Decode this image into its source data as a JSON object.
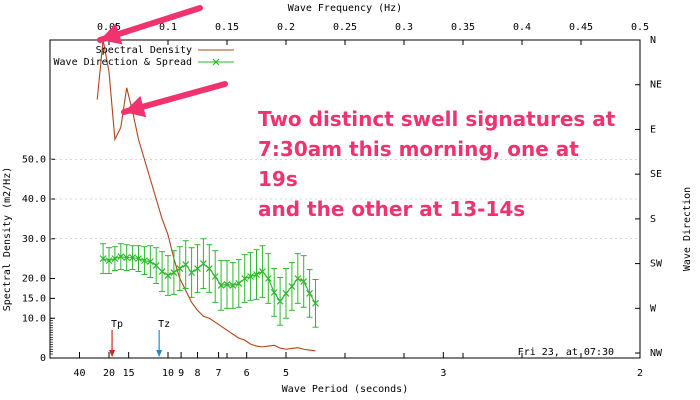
{
  "chart_data": {
    "type": "line",
    "xlabel_top": "Wave Frequency (Hz)",
    "xlabel_bottom": "Wave Period (seconds)",
    "ylabel_left": "Spectral Density (m2/Hz)",
    "ylabel_right": "Wave Direction",
    "xlim_freq": [
      0.0,
      0.5
    ],
    "top_ticks": [
      "0.05",
      "0.1",
      "0.15",
      "0.2",
      "0.25",
      "0.3",
      "0.35",
      "0.4",
      "0.45",
      "0.5"
    ],
    "top_tick_values": [
      0.05,
      0.1,
      0.15,
      0.2,
      0.25,
      0.3,
      0.35,
      0.4,
      0.45,
      0.5
    ],
    "bottom_ticks": [
      {
        "label": "40",
        "period": 40
      },
      {
        "label": "20",
        "period": 20
      },
      {
        "label": "15",
        "period": 15
      },
      {
        "label": "10",
        "period": 10
      },
      {
        "label": "9",
        "period": 9
      },
      {
        "label": "8",
        "period": 8
      },
      {
        "label": "7",
        "period": 7
      },
      {
        "label": "6",
        "period": 6
      },
      {
        "label": "5",
        "period": 5
      },
      {
        "label": "3",
        "period": 3
      },
      {
        "label": "2",
        "period": 2
      }
    ],
    "left_ticks": [
      {
        "label": "50.0",
        "value": 50
      },
      {
        "label": "40.0",
        "value": 40
      },
      {
        "label": "30.0",
        "value": 30
      },
      {
        "label": "20.0",
        "value": 20
      },
      {
        "label": "15.0",
        "value": 15
      },
      {
        "label": "10.0",
        "value": 10
      },
      {
        "label": "0",
        "value": 0
      }
    ],
    "ylim_density": [
      0,
      80
    ],
    "right_ticks": [
      "N",
      "NE",
      "E",
      "SE",
      "S",
      "SW",
      "W",
      "NW"
    ],
    "right_tick_degrees": [
      0,
      45,
      90,
      135,
      180,
      225,
      270,
      315
    ],
    "direction_range_deg": [
      0,
      360
    ],
    "legend": {
      "placement": "top-left",
      "entries": [
        "Spectral Density",
        "Wave Direction & Spread"
      ]
    },
    "series": [
      {
        "name": "Spectral Density",
        "color": "#b0441a",
        "freq": [
          0.04,
          0.045,
          0.05,
          0.055,
          0.06,
          0.065,
          0.07,
          0.075,
          0.08,
          0.085,
          0.09,
          0.095,
          0.1,
          0.105,
          0.11,
          0.115,
          0.12,
          0.125,
          0.13,
          0.135,
          0.14,
          0.145,
          0.15,
          0.155,
          0.16,
          0.165,
          0.17,
          0.175,
          0.18,
          0.185,
          0.19,
          0.195,
          0.2,
          0.205,
          0.21,
          0.215,
          0.22,
          0.225
        ],
        "values": [
          65,
          80,
          72,
          55,
          58,
          68,
          62,
          55,
          50,
          45,
          40,
          35,
          31,
          25,
          20,
          17,
          14,
          12,
          10.5,
          10,
          9,
          8,
          7,
          6,
          5,
          4.5,
          3.5,
          3,
          2.8,
          3,
          3.2,
          2.5,
          2.2,
          2.4,
          2.6,
          2.2,
          2.0,
          1.8
        ]
      },
      {
        "name": "Wave Direction & Spread",
        "color": "#2db82d",
        "freq": [
          0.045,
          0.05,
          0.055,
          0.06,
          0.065,
          0.07,
          0.075,
          0.08,
          0.085,
          0.09,
          0.095,
          0.1,
          0.105,
          0.11,
          0.115,
          0.12,
          0.125,
          0.13,
          0.135,
          0.14,
          0.145,
          0.15,
          0.155,
          0.16,
          0.165,
          0.17,
          0.175,
          0.18,
          0.185,
          0.19,
          0.195,
          0.2,
          0.205,
          0.21,
          0.215,
          0.22,
          0.225
        ],
        "direction_deg": [
          220,
          222,
          220,
          218,
          219,
          219,
          220,
          222,
          223,
          227,
          233,
          237,
          234,
          230,
          226,
          234,
          230,
          225,
          230,
          238,
          247,
          246,
          247,
          245,
          240,
          238,
          236,
          233,
          240,
          254,
          263,
          255,
          248,
          240,
          243,
          255,
          265
        ],
        "spread_deg": [
          15,
          13,
          12,
          13,
          13,
          12,
          13,
          14,
          16,
          18,
          20,
          20,
          22,
          22,
          24,
          25,
          24,
          25,
          24,
          26,
          25,
          24,
          23,
          24,
          24,
          24,
          25,
          26,
          25,
          24,
          24,
          25,
          24,
          25,
          26,
          24,
          24
        ]
      }
    ],
    "markers": [
      {
        "label": "Tp",
        "freq": 0.0526,
        "color": "#d6251d"
      },
      {
        "label": "Tz",
        "freq": 0.0925,
        "color": "#1e8ad6"
      }
    ],
    "timestamp": "Fri 23, at 07:30"
  },
  "annotation": {
    "text": "Two distinct swell signatures at\n7:30am this morning, one at 19s\nand the other at 13-14s",
    "color": "#f0326e"
  }
}
